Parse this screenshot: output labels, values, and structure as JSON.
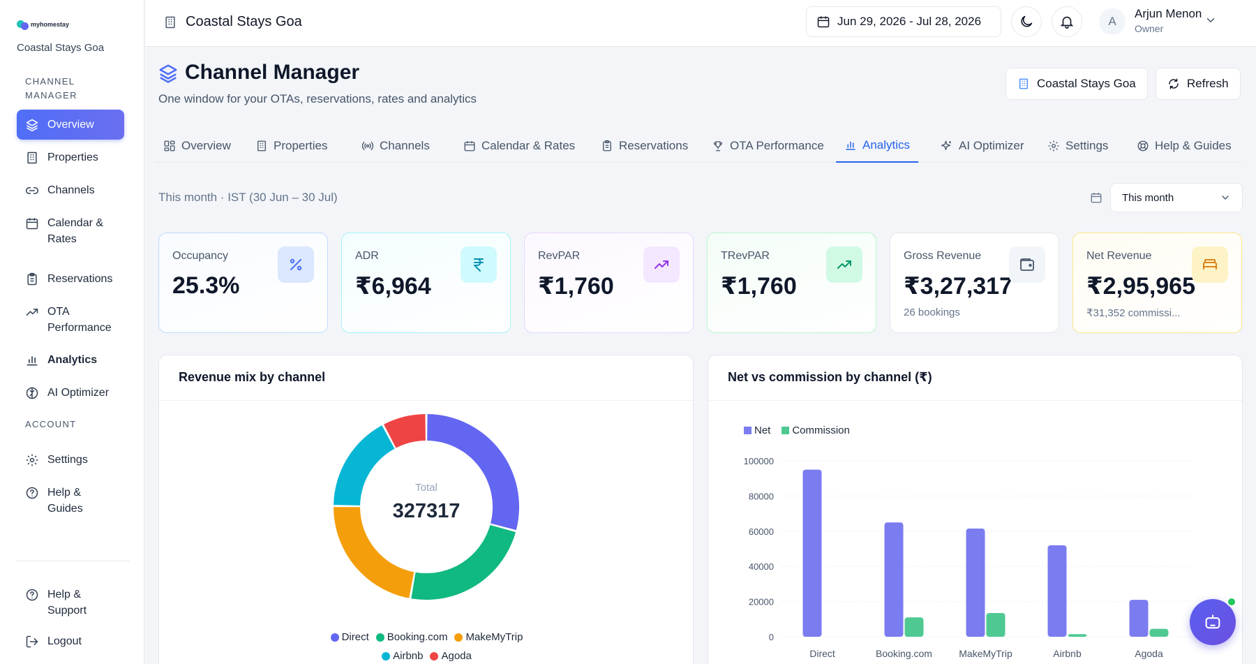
{
  "brand": {
    "logo_text": "myhomestay",
    "property": "Coastal Stays Goa"
  },
  "sidebar": {
    "section_channel": "CHANNEL MANAGER",
    "section_account": "ACCOUNT",
    "items": [
      {
        "label": "Overview"
      },
      {
        "label": "Properties"
      },
      {
        "label": "Channels"
      },
      {
        "label": "Calendar & Rates"
      },
      {
        "label": "Reservations"
      },
      {
        "label": "OTA Performance"
      },
      {
        "label": "Analytics"
      },
      {
        "label": "AI Optimizer"
      }
    ],
    "account_items": [
      {
        "label": "Settings"
      },
      {
        "label": "Help & Guides"
      }
    ],
    "footer_items": [
      {
        "label": "Help & Support"
      },
      {
        "label": "Logout"
      }
    ]
  },
  "header": {
    "title": "Coastal Stays Goa",
    "date_range": "Jun 29, 2026 - Jul 28, 2026",
    "user_initial": "A",
    "user_name": "Arjun Menon",
    "user_role": "Owner"
  },
  "page": {
    "title": "Channel Manager",
    "subtitle": "One window for your OTAs, reservations, rates and analytics",
    "property_button": "Coastal Stays Goa",
    "refresh_button": "Refresh"
  },
  "tabs": [
    {
      "label": "Overview"
    },
    {
      "label": "Properties"
    },
    {
      "label": "Channels"
    },
    {
      "label": "Calendar & Rates"
    },
    {
      "label": "Reservations"
    },
    {
      "label": "OTA Performance"
    },
    {
      "label": "Analytics"
    },
    {
      "label": "AI Optimizer"
    },
    {
      "label": "Settings"
    },
    {
      "label": "Help & Guides"
    }
  ],
  "range": {
    "text": "This month · IST (30 Jun – 30 Jul)",
    "selected": "This month"
  },
  "kpis": [
    {
      "label": "Occupancy",
      "value": "25.3%",
      "sub": ""
    },
    {
      "label": "ADR",
      "value": "₹6,964",
      "sub": ""
    },
    {
      "label": "RevPAR",
      "value": "₹1,760",
      "sub": ""
    },
    {
      "label": "TRevPAR",
      "value": "₹1,760",
      "sub": ""
    },
    {
      "label": "Gross Revenue",
      "value": "₹3,27,317",
      "sub": "26 bookings"
    },
    {
      "label": "Net Revenue",
      "value": "₹2,95,965",
      "sub": "₹31,352 commissi..."
    }
  ],
  "panels": {
    "donut_title": "Revenue mix by channel",
    "bar_title": "Net vs commission by channel (₹)"
  },
  "chart_data": [
    {
      "type": "pie",
      "title": "Revenue mix by channel",
      "center_label": "Total",
      "center_value": "327317",
      "categories": [
        "Direct",
        "Booking.com",
        "MakeMyTrip",
        "Airbnb",
        "Agoda"
      ],
      "values": [
        94000,
        76000,
        72000,
        55000,
        25000
      ],
      "colors": [
        "#6366f1",
        "#10b981",
        "#f59e0b",
        "#06b6d4",
        "#ef4444"
      ],
      "legend": "bottom"
    },
    {
      "type": "bar",
      "title": "Net vs commission by channel (₹)",
      "categories": [
        "Direct",
        "Booking.com",
        "MakeMyTrip",
        "Airbnb",
        "Agoda"
      ],
      "series": [
        {
          "name": "Net",
          "values": [
            95000,
            65000,
            61500,
            52000,
            21000
          ],
          "color": "#7b7cf0"
        },
        {
          "name": "Commission",
          "values": [
            0,
            11000,
            13500,
            1500,
            4500
          ],
          "color": "#4fc992"
        }
      ],
      "ylim": [
        0,
        100000
      ],
      "yticks": [
        0,
        20000,
        40000,
        60000,
        80000,
        100000
      ],
      "legend": "top-left",
      "grid": true
    }
  ]
}
